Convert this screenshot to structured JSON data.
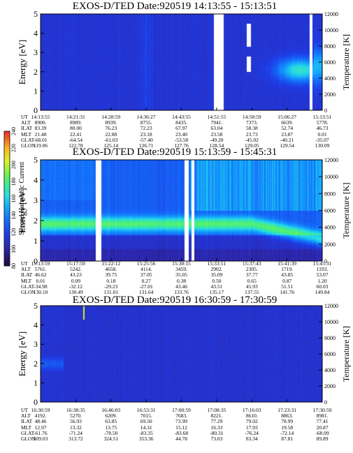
{
  "chart_data": [
    {
      "type": "heatmap",
      "title": "EXOS-D/TED   Date:920519   14:13:55 - 15:13:51",
      "ylabel": "Energy [eV]",
      "y2label": "Temperature [K]",
      "ylim": [
        0,
        5
      ],
      "y2lim": [
        0,
        12000
      ],
      "yticks": [
        "0",
        "1",
        "2",
        "3",
        "4",
        "5"
      ],
      "y2ticks": [
        "0",
        "2000",
        "4000",
        "6000",
        "8000",
        "10000",
        "12000"
      ],
      "rows": [
        {
          "label": "UT",
          "values": [
            "14:13:55",
            "14:21:31",
            "14:28:59",
            "14:36:27",
            "14:43:55",
            "14:51:55",
            "14:58:59",
            "15:06:27",
            "15:13:51"
          ]
        },
        {
          "label": "ALT",
          "values": [
            "8900.",
            "8989.",
            "8939.",
            "8755.",
            "8435.",
            "7941.",
            "7373.",
            "6639.",
            "5778."
          ]
        },
        {
          "label": "ILAT",
          "values": [
            "83.39",
            "80.00",
            "76.23",
            "72.23",
            "67.97",
            "63.04",
            "58.38",
            "52.74",
            "46.73"
          ]
        },
        {
          "label": "MLT",
          "values": [
            "21.48",
            "22.41",
            "22.88",
            "23.18",
            "23.40",
            "23.58",
            "23.73",
            "23.87",
            "0.01"
          ]
        },
        {
          "label": "GLAT",
          "values": [
            "-68.01",
            "-64.54",
            "-61.03",
            "-57.40",
            "-53.58",
            "-49.20",
            "-45.02",
            "-40.21",
            "-35.07"
          ]
        },
        {
          "label": "GLON",
          "values": [
            "119.06",
            "122.78",
            "125.14",
            "126.71",
            "127.76",
            "128.54",
            "129.05",
            "129.54",
            "130.09"
          ]
        }
      ]
    },
    {
      "type": "heatmap",
      "title": "EXOS-D/TED   Date:920519   15:13:59 - 15:45:31",
      "ylabel": "Energy [eV]",
      "y2label": "Temperature [K]",
      "ylim": [
        0,
        5
      ],
      "y2lim": [
        0,
        12000
      ],
      "yticks": [
        "0",
        "1",
        "2",
        "3",
        "4",
        "5"
      ],
      "y2ticks": [
        "0",
        "2000",
        "4000",
        "6000",
        "8000",
        "10000",
        "12000"
      ],
      "colorbar": {
        "label": "Second Harmonic Current",
        "range": [
          80,
          240
        ],
        "ticks": [
          "80",
          "100",
          "120",
          "140",
          "160",
          "180",
          "200",
          "220",
          "240"
        ]
      },
      "rows": [
        {
          "label": "UT",
          "values": [
            "15:13:59",
            "15:17:59",
            "15:22:12",
            "15:25:56",
            "15:30:15",
            "15:33:51",
            "15:37:43",
            "15:41:39",
            "15:45:31"
          ]
        },
        {
          "label": "ALT",
          "values": [
            "5761.",
            "5242.",
            "4658.",
            "4114.",
            "3459.",
            "2902.",
            "2305.",
            "1719.",
            "1193."
          ]
        },
        {
          "label": "ILAT",
          "values": [
            "46.62",
            "43.23",
            "39.75",
            "37.05",
            "35.05",
            "35.09",
            "37.77",
            "43.85",
            "53.07"
          ]
        },
        {
          "label": "MLT",
          "values": [
            "0.01",
            "0.09",
            "0.18",
            "0.27",
            "0.38",
            "0.50",
            "0.65",
            "0.87",
            "1.20"
          ]
        },
        {
          "label": "GLAT",
          "values": [
            "-34.98",
            "-32.12",
            "-29.23",
            "-27.01",
            "43.46",
            "43.51",
            "45.93",
            "51.51",
            "60.03"
          ]
        },
        {
          "label": "GLON",
          "values": [
            "130.10",
            "130.49",
            "131.01",
            "131.64",
            "133.76",
            "135.17",
            "137.55",
            "141.76",
            "149.84"
          ]
        }
      ]
    },
    {
      "type": "heatmap",
      "title": "EXOS-D/TED   Date:920519   16:30:59 - 17:30:59",
      "ylabel": "Energy [eV]",
      "y2label": "Temperature [K]",
      "ylim": [
        0,
        5
      ],
      "y2lim": [
        0,
        12000
      ],
      "yticks": [
        "0",
        "1",
        "2",
        "3",
        "4",
        "5"
      ],
      "y2ticks": [
        "0",
        "2000",
        "4000",
        "6000",
        "8000",
        "10000",
        "12000"
      ],
      "rows": [
        {
          "label": "UT",
          "values": [
            "16:30:59",
            "16:38:35",
            "16:46:03",
            "16:53:31",
            "17:00:59",
            "17:08:35",
            "17:16:03",
            "17:23:31",
            "17:30:59"
          ]
        },
        {
          "label": "ALT",
          "values": [
            "4192.",
            "5270.",
            "6209.",
            "7015.",
            "7683.",
            "8221.",
            "8610.",
            "8863.",
            "8981."
          ]
        },
        {
          "label": "ILAT",
          "values": [
            "48.46",
            "56.93",
            "63.85",
            "69.50",
            "73.99",
            "77.29",
            "79.02",
            "78.99",
            "77.41"
          ]
        },
        {
          "label": "MLT",
          "values": [
            "12.97",
            "13.32",
            "13.75",
            "14.31",
            "15.12",
            "16.33",
            "17.93",
            "19.58",
            "20.87"
          ]
        },
        {
          "label": "GLAT",
          "values": [
            "-61.76",
            "-71.24",
            "-78.50",
            "-83.35",
            "-83.68",
            "-80.31",
            "-76.24",
            "-72.14",
            "-68.09"
          ]
        },
        {
          "label": "GLON",
          "values": [
            "309.03",
            "313.72",
            "324.51",
            "353.36",
            "44.78",
            "73.03",
            "83.34",
            "87.81",
            "89.89"
          ]
        }
      ]
    }
  ]
}
